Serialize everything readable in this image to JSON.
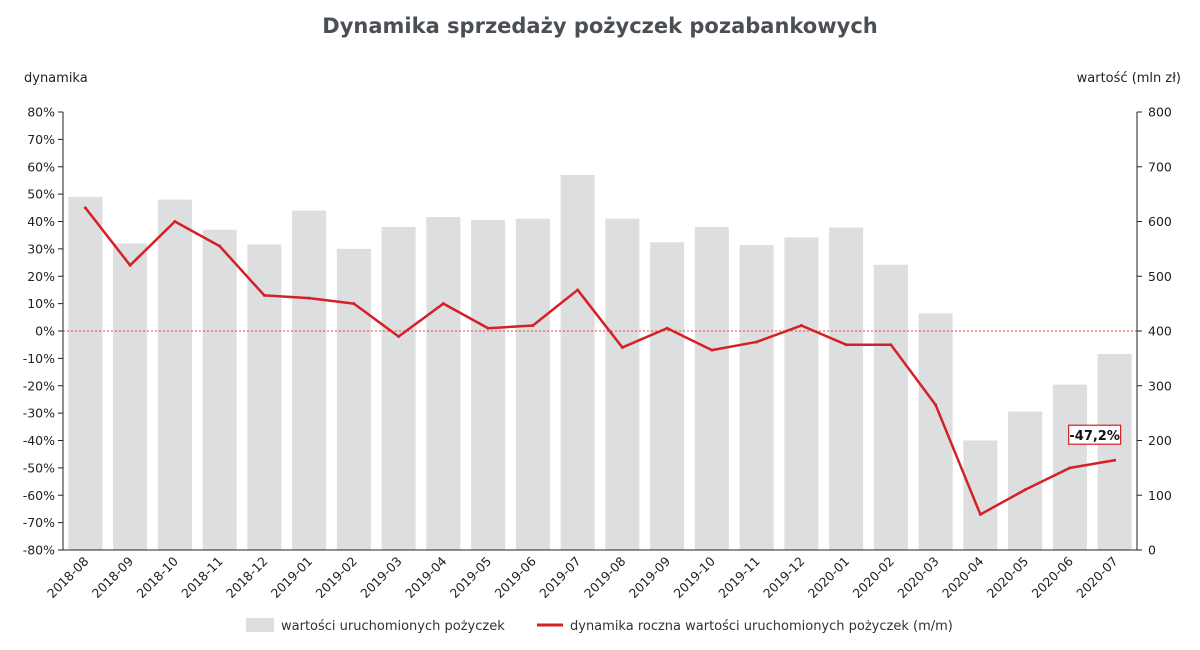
{
  "chart_data": {
    "type": "bar",
    "title": "Dynamika sprzedaży pożyczek pozabankowych",
    "y_left_label": "dynamika",
    "y_right_label": "wartość (mln zł)",
    "categories": [
      "2018-08",
      "2018-09",
      "2018-10",
      "2018-11",
      "2018-12",
      "2019-01",
      "2019-02",
      "2019-03",
      "2019-04",
      "2019-05",
      "2019-06",
      "2019-07",
      "2019-08",
      "2019-09",
      "2019-10",
      "2019-11",
      "2019-12",
      "2020-01",
      "2020-02",
      "2020-03",
      "2020-04",
      "2020-05",
      "2020-06",
      "2020-07"
    ],
    "y_left_ticks": [
      "80%",
      "70%",
      "60%",
      "50%",
      "40%",
      "30%",
      "20%",
      "10%",
      "0%",
      "-10%",
      "-20%",
      "-30%",
      "-40%",
      "-50%",
      "-60%",
      "-70%",
      "-80%"
    ],
    "y_right_ticks": [
      "800",
      "700",
      "600",
      "500",
      "400",
      "300",
      "200",
      "100",
      "0"
    ],
    "y_left_range": [
      -80,
      80
    ],
    "y_right_range": [
      0,
      800
    ],
    "series": [
      {
        "name": "wartości uruchomionych pożyczek",
        "type": "bar",
        "axis": "right",
        "color": "#dcdedf",
        "values": [
          645,
          560,
          640,
          585,
          558,
          620,
          550,
          590,
          608,
          603,
          605,
          685,
          605,
          562,
          590,
          557,
          571,
          589,
          521,
          432,
          200,
          253,
          302,
          358
        ]
      },
      {
        "name": "dynamika roczna wartości uruchomionych pożyczek (m/m)",
        "type": "line",
        "axis": "left",
        "color": "#d42027",
        "values": [
          45,
          24,
          40,
          31,
          13,
          12,
          10,
          -2,
          10,
          1,
          2,
          15,
          -6,
          1,
          -7,
          -4,
          2,
          -5,
          -5,
          -27,
          -67,
          -58,
          -50,
          -47.2
        ]
      }
    ],
    "annotation": {
      "label": "-47,2%",
      "index": 23
    },
    "reference_line": {
      "value": 0,
      "axis": "left",
      "color": "#e8402a"
    },
    "legend_position": "bottom",
    "grid": false
  }
}
